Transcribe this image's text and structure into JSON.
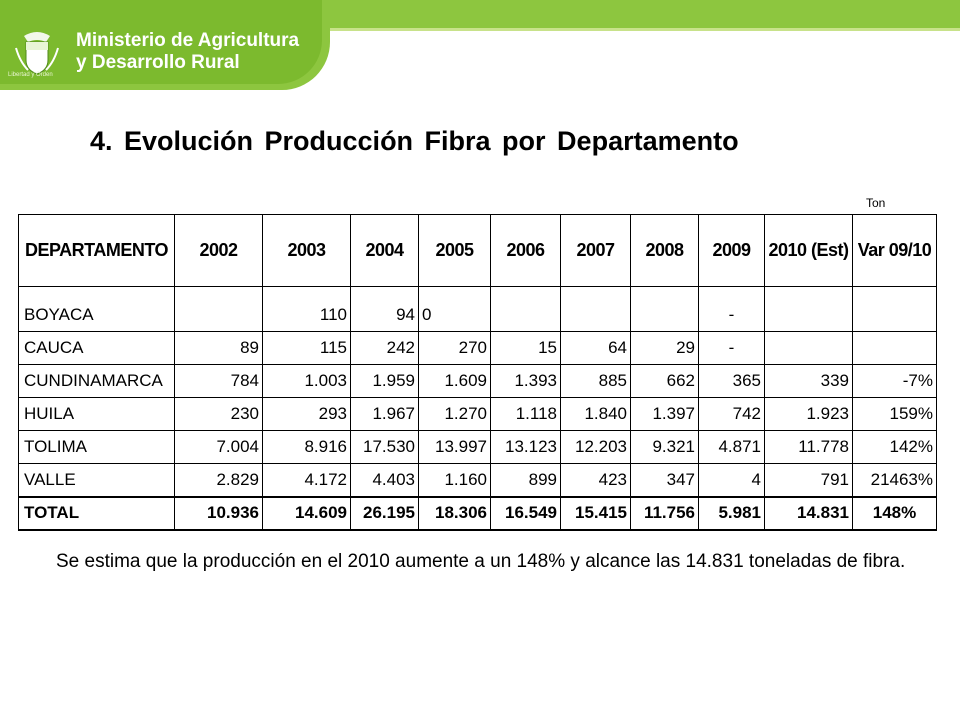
{
  "header": {
    "ministry_line1": "Ministerio de Agricultura",
    "ministry_line2": "y Desarrollo Rural",
    "logo_caption": "Libertad y Orden",
    "band_color": "#8dc63f"
  },
  "title": "4. Evolución Producción Fibra por Departamento",
  "unit": "Ton",
  "table": {
    "columns": [
      "DEPARTAMENTO",
      "2002",
      "2003",
      "2004",
      "2005",
      "2006",
      "2007",
      "2008",
      "2009",
      "2010 (Est)",
      "Var 09/10"
    ],
    "rows": [
      [
        "BOYACA",
        "",
        "110",
        "94",
        "0",
        "",
        "",
        "",
        "-",
        "",
        ""
      ],
      [
        "CAUCA",
        "89",
        "115",
        "242",
        "270",
        "15",
        "64",
        "29",
        "-",
        "",
        ""
      ],
      [
        "CUNDINAMARCA",
        "784",
        "1.003",
        "1.959",
        "1.609",
        "1.393",
        "885",
        "662",
        "365",
        "339",
        "-7%"
      ],
      [
        "HUILA",
        "230",
        "293",
        "1.967",
        "1.270",
        "1.118",
        "1.840",
        "1.397",
        "742",
        "1.923",
        "159%"
      ],
      [
        "TOLIMA",
        "7.004",
        "8.916",
        "17.530",
        "13.997",
        "13.123",
        "12.203",
        "9.321",
        "4.871",
        "11.778",
        "142%"
      ],
      [
        "VALLE",
        "2.829",
        "4.172",
        "4.403",
        "1.160",
        "899",
        "423",
        "347",
        "4",
        "791",
        "21463%"
      ]
    ],
    "total": [
      "TOTAL",
      "10.936",
      "14.609",
      "26.195",
      "18.306",
      "16.549",
      "15.415",
      "11.756",
      "5.981",
      "14.831",
      "148%"
    ]
  },
  "note": "Se estima que la producción en el 2010 aumente a un 148% y alcance las 14.831 toneladas de fibra."
}
